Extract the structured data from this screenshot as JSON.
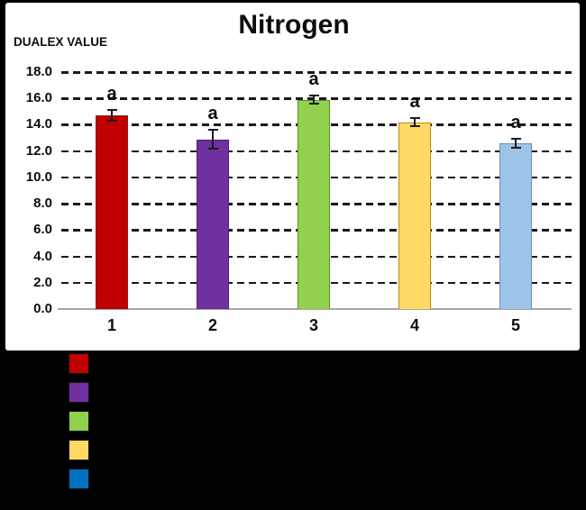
{
  "chart_data": {
    "type": "bar",
    "title": "Nitrogen",
    "ylabel": "DUALEX VALUE",
    "xlabel": "",
    "categories": [
      "1",
      "2",
      "3",
      "4",
      "5"
    ],
    "values": [
      14.7,
      12.9,
      15.9,
      14.2,
      12.6
    ],
    "errors": [
      0.4,
      0.7,
      0.3,
      0.3,
      0.35
    ],
    "point_labels": [
      "a",
      "a",
      "a",
      "a",
      "a"
    ],
    "bar_colors": [
      "#C00000",
      "#7030A0",
      "#92D050",
      "#FFD966",
      "#9DC3E6"
    ],
    "bar_border_colors": [
      "#8B1A1A",
      "#50226E",
      "#648C28",
      "#BF9000",
      "#6B93BB"
    ],
    "ylim": [
      0,
      18
    ],
    "ytick_step": 2,
    "ytick_labels": [
      "0.0",
      "2.0",
      "4.0",
      "6.0",
      "8.0",
      "10.0",
      "12.0",
      "14.0",
      "16.0",
      "18.0"
    ],
    "grid": {
      "horizontal": true,
      "style": "dashed",
      "color": "#1A1A1A"
    },
    "axis_line_color": "#A6A6A6",
    "error_bar_color": "#1C1C1C",
    "legend": {
      "position": "bottom-left-outside",
      "background": "#000000",
      "swatches": [
        {
          "name": "series-1-swatch",
          "color": "#C00000"
        },
        {
          "name": "series-2-swatch",
          "color": "#7030A0"
        },
        {
          "name": "series-3-swatch",
          "color": "#92D050"
        },
        {
          "name": "series-4-swatch",
          "color": "#FFD966"
        },
        {
          "name": "series-5-swatch",
          "color": "#0070C0"
        }
      ]
    },
    "colors": {
      "page_bg": "#000000",
      "panel_bg": "#FFFFFF",
      "text": "#000000"
    }
  }
}
